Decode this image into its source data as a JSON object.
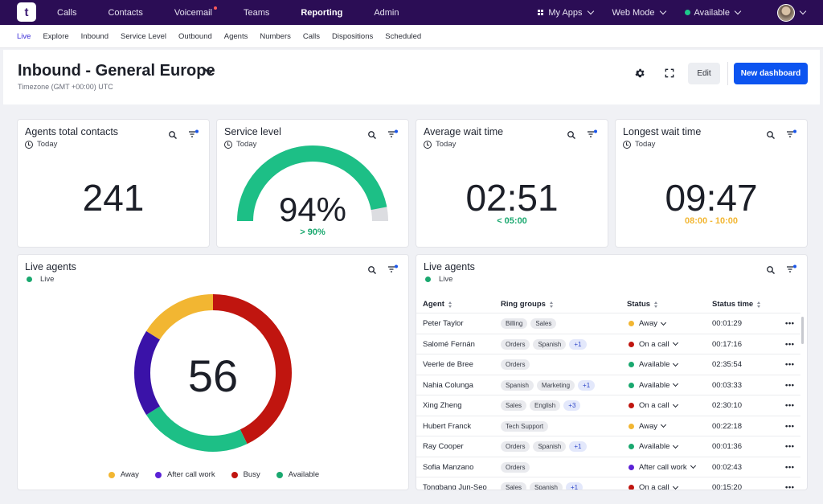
{
  "topnav": {
    "logo": "t",
    "items": [
      "Calls",
      "Contacts",
      "Voicemail",
      "Teams",
      "Reporting",
      "Admin"
    ],
    "active": "Reporting",
    "right": {
      "apps": "My Apps",
      "mode": "Web Mode",
      "status": "Available"
    }
  },
  "subnav": {
    "items": [
      "Live",
      "Explore",
      "Inbound",
      "Service Level",
      "Outbound",
      "Agents",
      "Numbers",
      "Calls",
      "Dispositions",
      "Scheduled"
    ],
    "active": "Live"
  },
  "header": {
    "title": "Inbound - General Europe",
    "timezone": "Timezone (GMT +00:00) UTC",
    "edit": "Edit",
    "new_dashboard": "New dashboard"
  },
  "kpis": {
    "contacts": {
      "title": "Agents total contacts",
      "period": "Today",
      "value": "241"
    },
    "service": {
      "title": "Service level",
      "period": "Today",
      "value": "94%",
      "target": "> 90%",
      "fraction": 0.94
    },
    "avg_wait": {
      "title": "Average wait time",
      "period": "Today",
      "value": "02:51",
      "target": "< 05:00"
    },
    "longest_wait": {
      "title": "Longest wait time",
      "period": "Today",
      "value": "09:47",
      "range": "08:00 - 10:00"
    }
  },
  "colors": {
    "green": "#1dbf86",
    "yellow": "#f2b632",
    "red": "#c0150f",
    "purple": "#3a12a8",
    "grey": "#dcdde1"
  },
  "donut": {
    "title": "Live agents",
    "status": "Live",
    "total": "56",
    "legend": [
      "Away",
      "After call work",
      "Busy",
      "Available"
    ]
  },
  "chart_data": {
    "type": "pie",
    "categories": [
      "Busy",
      "Available",
      "After call work",
      "Away"
    ],
    "values": [
      24,
      13,
      10,
      9
    ],
    "title": "Live agents"
  },
  "table": {
    "title": "Live agents",
    "status": "Live",
    "columns": [
      "Agent",
      "Ring groups",
      "Status",
      "Status time"
    ],
    "rows": [
      {
        "agent": "Peter Taylor",
        "groups": [
          "Billing",
          "Sales"
        ],
        "more": "",
        "status": "Away",
        "color": "#f2b632",
        "time": "00:01:29"
      },
      {
        "agent": "Salomé Fernán",
        "groups": [
          "Orders",
          "Spanish"
        ],
        "more": "+1",
        "status": "On a call",
        "color": "#c0150f",
        "time": "00:17:16"
      },
      {
        "agent": "Veerle de Bree",
        "groups": [
          "Orders"
        ],
        "more": "",
        "status": "Available",
        "color": "#1aa86f",
        "time": "02:35:54"
      },
      {
        "agent": "Nahia Colunga",
        "groups": [
          "Spanish",
          "Marketing"
        ],
        "more": "+1",
        "status": "Available",
        "color": "#1aa86f",
        "time": "00:03:33"
      },
      {
        "agent": "Xing Zheng",
        "groups": [
          "Sales",
          "English"
        ],
        "more": "+3",
        "status": "On a call",
        "color": "#c0150f",
        "time": "02:30:10"
      },
      {
        "agent": "Hubert Franck",
        "groups": [
          "Tech Support"
        ],
        "more": "",
        "status": "Away",
        "color": "#f2b632",
        "time": "00:22:18"
      },
      {
        "agent": "Ray Cooper",
        "groups": [
          "Orders",
          "Spanish"
        ],
        "more": "+1",
        "status": "Available",
        "color": "#1aa86f",
        "time": "00:01:36"
      },
      {
        "agent": "Sofia Manzano",
        "groups": [
          "Orders"
        ],
        "more": "",
        "status": "After call work",
        "color": "#5b22d6",
        "time": "00:02:43"
      },
      {
        "agent": "Tongbang Jun-Seo",
        "groups": [
          "Sales",
          "Spanish"
        ],
        "more": "+1",
        "status": "On a call",
        "color": "#c0150f",
        "time": "00:15:20"
      }
    ]
  }
}
